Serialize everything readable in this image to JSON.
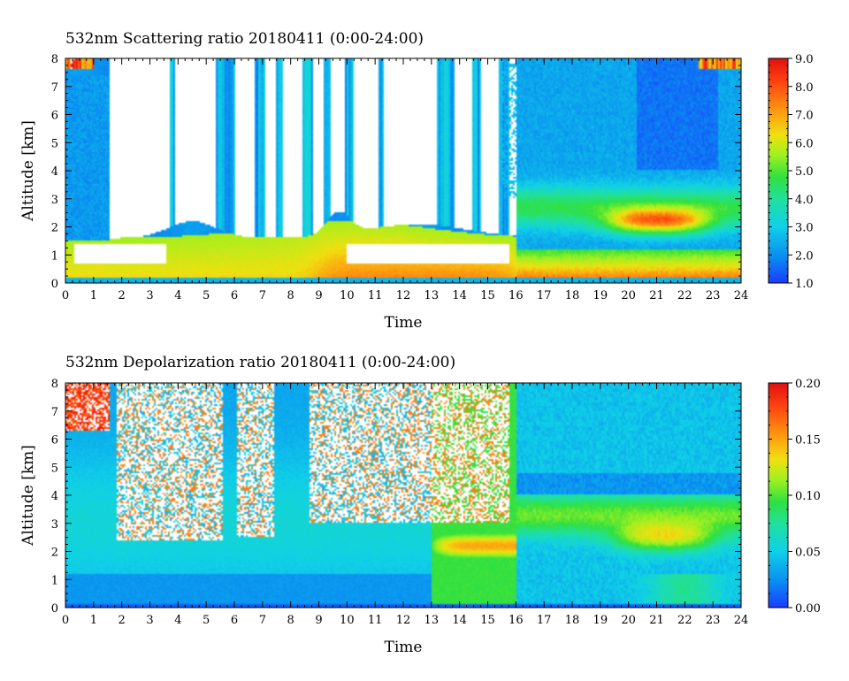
{
  "chart_data": [
    {
      "type": "heatmap",
      "title": "532nm Scattering ratio  20180411 (0:00-24:00)",
      "xlabel": "Time",
      "ylabel": "Altitude [km]",
      "xlim": [
        0,
        24
      ],
      "ylim": [
        0,
        8
      ],
      "xticks": [
        "0",
        "1",
        "2",
        "3",
        "4",
        "5",
        "6",
        "7",
        "8",
        "9",
        "10",
        "11",
        "12",
        "13",
        "14",
        "15",
        "16",
        "17",
        "18",
        "19",
        "20",
        "21",
        "22",
        "23",
        "24"
      ],
      "yticks": [
        "0",
        "1",
        "2",
        "3",
        "4",
        "5",
        "6",
        "7",
        "8"
      ],
      "colorbar": {
        "range": [
          1.0,
          9.0
        ],
        "ticks": [
          "1.0",
          "2.0",
          "3.0",
          "4.0",
          "5.0",
          "6.0",
          "7.0",
          "8.0",
          "9.0"
        ]
      },
      "saturated_color": "#ffffff",
      "colormap": [
        "#1a3cff",
        "#0a8ff0",
        "#10d0e8",
        "#20e0a0",
        "#30e040",
        "#a0f020",
        "#f0e010",
        "#ff9010",
        "#ff4010",
        "#e01010"
      ]
    },
    {
      "type": "heatmap",
      "title": "532nm Depolarization ratio  20180411 (0:00-24:00)",
      "xlabel": "Time",
      "ylabel": "Altitude [km]",
      "xlim": [
        0,
        24
      ],
      "ylim": [
        0,
        8
      ],
      "xticks": [
        "0",
        "1",
        "2",
        "3",
        "4",
        "5",
        "6",
        "7",
        "8",
        "9",
        "10",
        "11",
        "12",
        "13",
        "14",
        "15",
        "16",
        "17",
        "18",
        "19",
        "20",
        "21",
        "22",
        "23",
        "24"
      ],
      "yticks": [
        "0",
        "1",
        "2",
        "3",
        "4",
        "5",
        "6",
        "7",
        "8"
      ],
      "colorbar": {
        "range": [
          0.0,
          0.2
        ],
        "ticks": [
          "0.00",
          "0.05",
          "0.10",
          "0.15",
          "0.20"
        ]
      },
      "saturated_color": "#ffffff",
      "colormap": [
        "#1a3cff",
        "#0a8ff0",
        "#10d0e8",
        "#20e0a0",
        "#30e040",
        "#a0f020",
        "#f0e010",
        "#ff9010",
        "#ff4010",
        "#e01010"
      ]
    }
  ]
}
